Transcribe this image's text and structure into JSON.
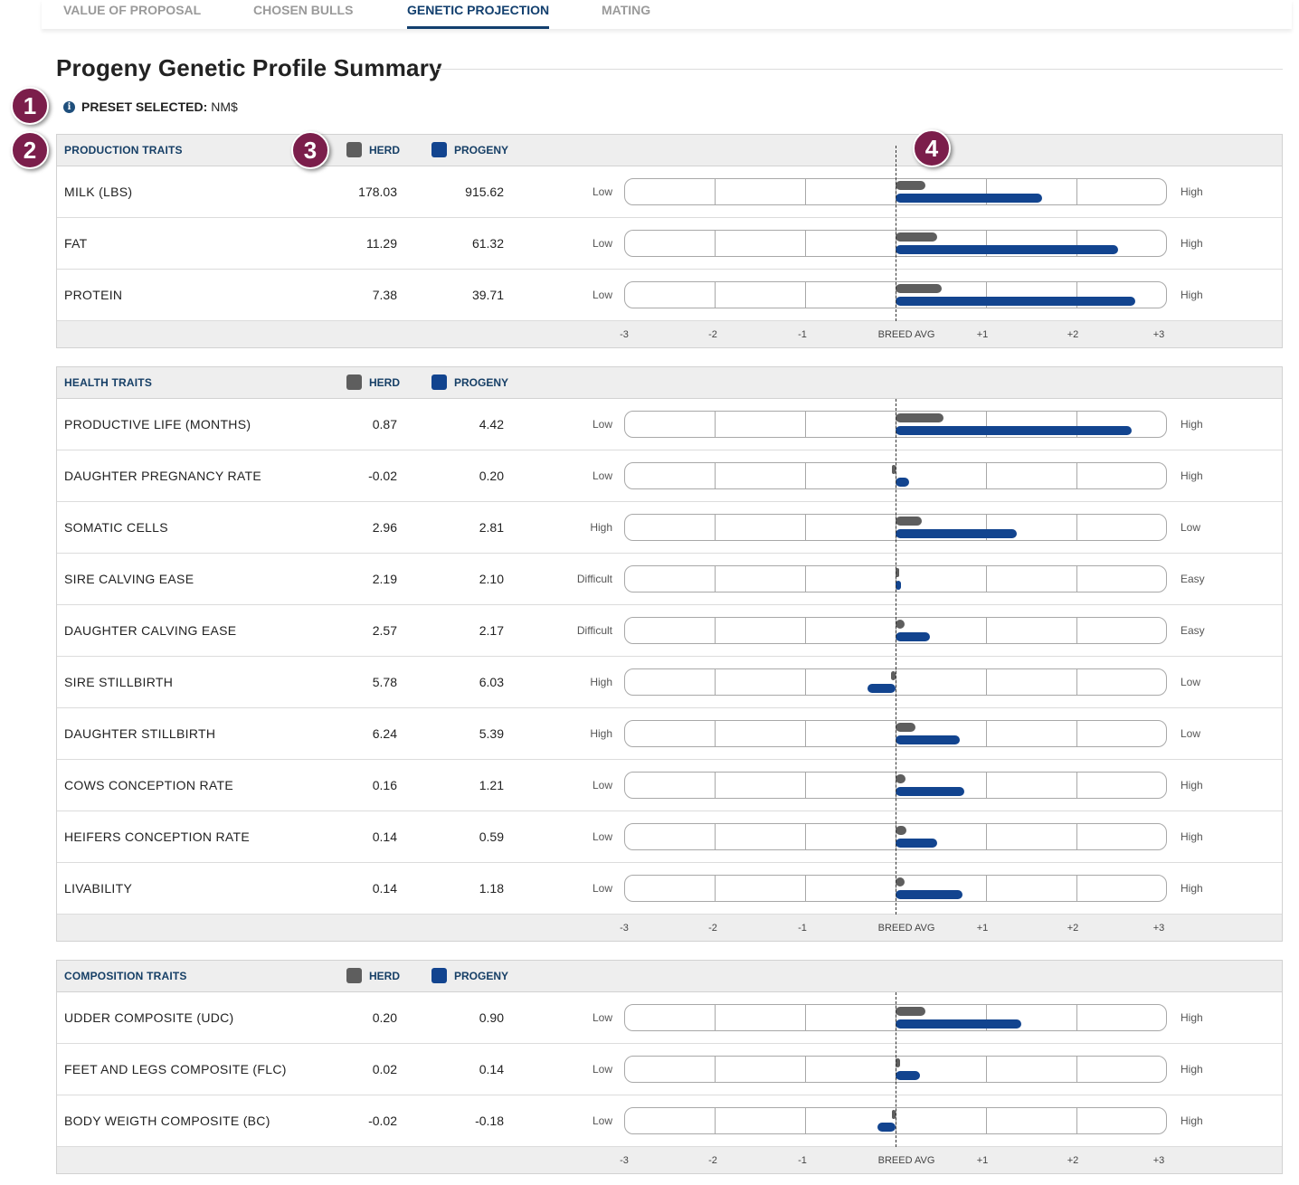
{
  "tabs": [
    {
      "label": "VALUE OF PROPOSAL",
      "active": false
    },
    {
      "label": "CHOSEN BULLS",
      "active": false
    },
    {
      "label": "GENETIC PROJECTION",
      "active": true
    },
    {
      "label": "MATING",
      "active": false
    }
  ],
  "page_title": "Progeny Genetic Profile Summary",
  "preset": {
    "label": "PRESET SELECTED:",
    "value": "NM$",
    "icon": "info-icon"
  },
  "markers": [
    "1",
    "2",
    "3",
    "4"
  ],
  "legend": {
    "herd": "HERD",
    "progeny": "PROGENY"
  },
  "colors": {
    "herd": "#5e5e5e",
    "progeny": "#12448f",
    "accent": "#163f66",
    "marker": "#7b1e4b"
  },
  "axis": {
    "ticks": [
      "-3",
      "-2",
      "-1",
      "BREED AVG",
      "+1",
      "+2",
      "+3"
    ],
    "range": [
      -3,
      3
    ]
  },
  "sections": [
    {
      "title": "PRODUCTION TRAITS",
      "traits": [
        {
          "name": "MILK (LBS)",
          "herd": "178.03",
          "progeny": "915.62",
          "low": "Low",
          "high": "High",
          "herd_score": 0.33,
          "progeny_score": 1.62
        },
        {
          "name": "FAT",
          "herd": "11.29",
          "progeny": "61.32",
          "low": "Low",
          "high": "High",
          "herd_score": 0.46,
          "progeny_score": 2.46
        },
        {
          "name": "PROTEIN",
          "herd": "7.38",
          "progeny": "39.71",
          "low": "Low",
          "high": "High",
          "herd_score": 0.51,
          "progeny_score": 2.65
        }
      ]
    },
    {
      "title": "HEALTH TRAITS",
      "traits": [
        {
          "name": "PRODUCTIVE LIFE (MONTHS)",
          "herd": "0.87",
          "progeny": "4.42",
          "low": "Low",
          "high": "High",
          "herd_score": 0.53,
          "progeny_score": 2.61
        },
        {
          "name": "DAUGHTER PREGNANCY RATE",
          "herd": "-0.02",
          "progeny": "0.20",
          "low": "Low",
          "high": "High",
          "herd_score": -0.01,
          "progeny_score": 0.15
        },
        {
          "name": "SOMATIC CELLS",
          "herd": "2.96",
          "progeny": "2.81",
          "low": "High",
          "high": "Low",
          "herd_score": 0.29,
          "progeny_score": 1.34
        },
        {
          "name": "SIRE CALVING EASE",
          "herd": "2.19",
          "progeny": "2.10",
          "low": "Difficult",
          "high": "Easy",
          "herd_score": 0.01,
          "progeny_score": 0.06
        },
        {
          "name": "DAUGHTER CALVING EASE",
          "herd": "2.57",
          "progeny": "2.17",
          "low": "Difficult",
          "high": "Easy",
          "herd_score": 0.1,
          "progeny_score": 0.38
        },
        {
          "name": "SIRE STILLBIRTH",
          "herd": "5.78",
          "progeny": "6.03",
          "low": "High",
          "high": "Low",
          "herd_score": -0.05,
          "progeny_score": -0.31
        },
        {
          "name": "DAUGHTER STILLBIRTH",
          "herd": "6.24",
          "progeny": "5.39",
          "low": "High",
          "high": "Low",
          "herd_score": 0.22,
          "progeny_score": 0.71
        },
        {
          "name": "COWS CONCEPTION RATE",
          "herd": "0.16",
          "progeny": "1.21",
          "low": "Low",
          "high": "High",
          "herd_score": 0.11,
          "progeny_score": 0.76
        },
        {
          "name": "HEIFERS CONCEPTION RATE",
          "herd": "0.14",
          "progeny": "0.59",
          "low": "Low",
          "high": "High",
          "herd_score": 0.12,
          "progeny_score": 0.46
        },
        {
          "name": "LIVABILITY",
          "herd": "0.14",
          "progeny": "1.18",
          "low": "Low",
          "high": "High",
          "herd_score": 0.1,
          "progeny_score": 0.74
        }
      ]
    },
    {
      "title": "COMPOSITION TRAITS",
      "traits": [
        {
          "name": "UDDER COMPOSITE (UDC)",
          "herd": "0.20",
          "progeny": "0.90",
          "low": "Low",
          "high": "High",
          "herd_score": 0.33,
          "progeny_score": 1.39
        },
        {
          "name": "FEET AND LEGS COMPOSITE (FLC)",
          "herd": "0.02",
          "progeny": "0.14",
          "low": "Low",
          "high": "High",
          "herd_score": 0.05,
          "progeny_score": 0.27
        },
        {
          "name": "BODY WEIGTH COMPOSITE (BC)",
          "herd": "-0.02",
          "progeny": "-0.18",
          "low": "Low",
          "high": "High",
          "herd_score": -0.01,
          "progeny_score": -0.2
        }
      ]
    }
  ]
}
